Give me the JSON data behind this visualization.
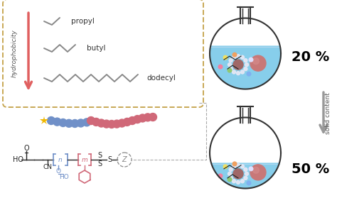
{
  "bg_color": "#ffffff",
  "box_color": "#c8a855",
  "arrow_red": "#e06060",
  "chain_blue": "#7090c8",
  "chain_pink": "#d06878",
  "flask_fill": "#87ceeb",
  "flask_outline": "#333333",
  "text_20": "20 %",
  "text_50": "50 %",
  "text_solid": "solid content",
  "label_hydro": "hydrophobicity",
  "label_propyl": "propyl",
  "label_butyl": "butyl",
  "label_dodecyl": "dodecyl",
  "gray_arrow": "#999999",
  "zigzag_color": "#888888",
  "chem_black": "#222222",
  "chem_blue": "#7090c8",
  "chem_pink": "#d06878",
  "chem_gray": "#888888"
}
